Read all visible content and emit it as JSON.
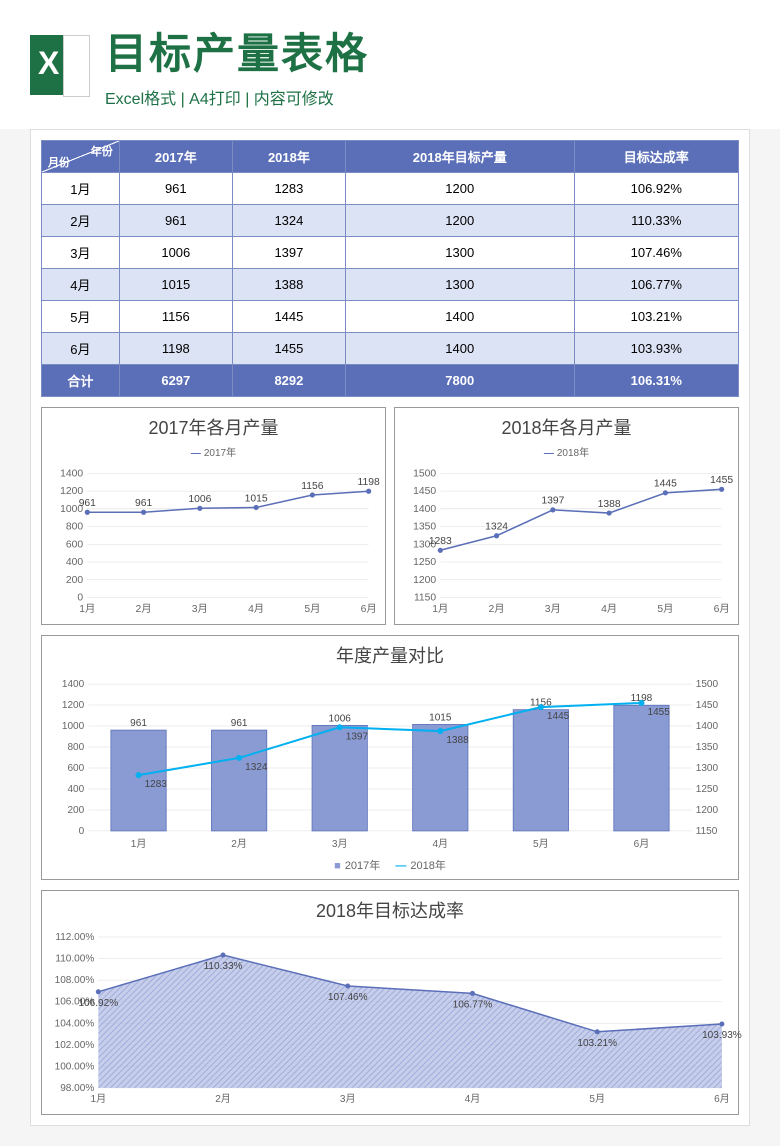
{
  "header": {
    "title": "目标产量表格",
    "subtitle": "Excel格式 | A4打印 | 内容可修改"
  },
  "table": {
    "corner_month": "月份",
    "corner_year": "年份",
    "columns": [
      "2017年",
      "2018年",
      "2018年目标产量",
      "目标达成率"
    ],
    "months": [
      "1月",
      "2月",
      "3月",
      "4月",
      "5月",
      "6月"
    ],
    "rows": [
      [
        "961",
        "1283",
        "1200",
        "106.92%"
      ],
      [
        "961",
        "1324",
        "1200",
        "110.33%"
      ],
      [
        "1006",
        "1397",
        "1300",
        "107.46%"
      ],
      [
        "1015",
        "1388",
        "1300",
        "106.77%"
      ],
      [
        "1156",
        "1445",
        "1400",
        "103.21%"
      ],
      [
        "1198",
        "1455",
        "1400",
        "103.93%"
      ]
    ],
    "total_label": "合计",
    "totals": [
      "6297",
      "8292",
      "7800",
      "106.31%"
    ]
  },
  "chart2017": {
    "type": "line",
    "title": "2017年各月产量",
    "legend": "2017年",
    "x": [
      "1月",
      "2月",
      "3月",
      "4月",
      "5月",
      "6月"
    ],
    "y": [
      961,
      961,
      1006,
      1015,
      1156,
      1198
    ],
    "ylim": [
      0,
      1400
    ],
    "ytick_step": 200,
    "line_color": "#5b6fb8",
    "marker_color": "#5b6fb8",
    "grid_color": "#dcdcdc",
    "background_color": "#ffffff",
    "title_fontsize": 18,
    "label_fontsize": 10
  },
  "chart2018": {
    "type": "line",
    "title": "2018年各月产量",
    "legend": "2018年",
    "x": [
      "1月",
      "2月",
      "3月",
      "4月",
      "5月",
      "6月"
    ],
    "y": [
      1283,
      1324,
      1397,
      1388,
      1445,
      1455
    ],
    "ylim": [
      1150,
      1500
    ],
    "ytick_step": 50,
    "line_color": "#5b6fb8",
    "marker_color": "#5b6fb8",
    "grid_color": "#dcdcdc",
    "background_color": "#ffffff",
    "title_fontsize": 18,
    "label_fontsize": 10
  },
  "chartCombo": {
    "type": "bar+line",
    "title": "年度产量对比",
    "x": [
      "1月",
      "2月",
      "3月",
      "4月",
      "5月",
      "6月"
    ],
    "bar_series": {
      "name": "2017年",
      "y": [
        961,
        961,
        1006,
        1015,
        1156,
        1198
      ],
      "color": "#8a9bd4",
      "border": "#5b6fb8",
      "ylim": [
        0,
        1400
      ],
      "ytick_step": 200
    },
    "line_series": {
      "name": "2018年",
      "y": [
        1283,
        1324,
        1397,
        1388,
        1445,
        1455
      ],
      "color": "#00b0f0",
      "ylim": [
        1150,
        1500
      ],
      "ytick_step": 50
    },
    "grid_color": "#dcdcdc",
    "background_color": "#ffffff",
    "bar_width": 0.55
  },
  "chartRate": {
    "type": "area",
    "title": "2018年目标达成率",
    "x": [
      "1月",
      "2月",
      "3月",
      "4月",
      "5月",
      "6月"
    ],
    "y": [
      106.92,
      110.33,
      107.46,
      106.77,
      103.21,
      103.93
    ],
    "labels": [
      "106.92%",
      "110.33%",
      "107.46%",
      "106.77%",
      "103.21%",
      "103.93%"
    ],
    "ylim": [
      98,
      112
    ],
    "ytick_step": 2,
    "yticks": [
      "98.00%",
      "100.00%",
      "102.00%",
      "104.00%",
      "106.00%",
      "108.00%",
      "110.00%",
      "112.00%"
    ],
    "fill_color": "#b8c2e6",
    "line_color": "#5b6fb8",
    "grid_color": "#dcdcdc",
    "background_color": "#ffffff",
    "fill_pattern": "diagonal-stripe"
  },
  "colors": {
    "header_bg": "#5b6fb8",
    "alt_row_bg": "#dce3f5",
    "border": "#7b8bc4",
    "excel_green": "#1e7145"
  }
}
